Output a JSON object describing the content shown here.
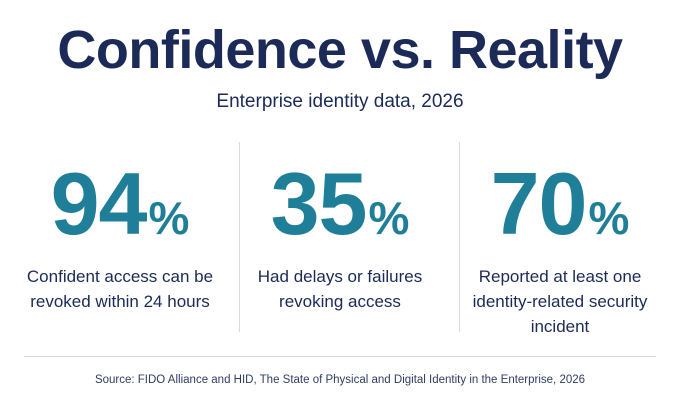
{
  "header": {
    "title": "Confidence vs. Reality",
    "subtitle": "Enterprise identity data, 2026"
  },
  "stats": [
    {
      "value": "94",
      "unit": "%",
      "label": "Confident access can be revoked within 24 hours"
    },
    {
      "value": "35",
      "unit": "%",
      "label": "Had delays or failures revoking access"
    },
    {
      "value": "70",
      "unit": "%",
      "label": "Reported at least one identity-related security incident"
    }
  ],
  "footer": {
    "source": "Source: FIDO Alliance and HID, The State of Physical and Digital Identity in the Enterprise, 2026"
  },
  "colors": {
    "title": "#1b2a57",
    "accent": "#1f7e98",
    "divider": "#d6dbe3"
  }
}
